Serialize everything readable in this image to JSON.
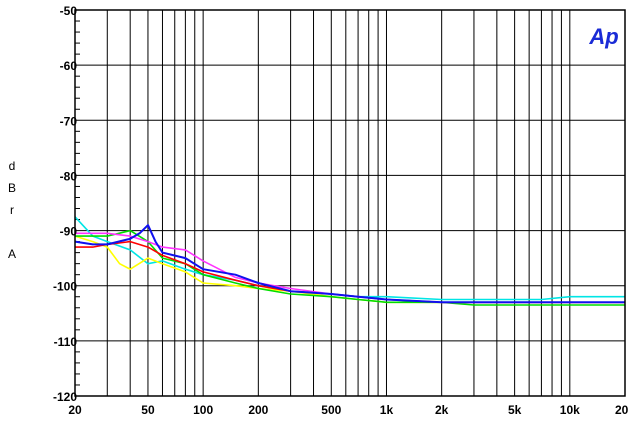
{
  "chart_data": {
    "type": "line",
    "title": "",
    "xlabel": "",
    "ylabel": [
      "d",
      "B",
      "r",
      "",
      "A"
    ],
    "xscale": "log",
    "xlim": [
      20,
      20000
    ],
    "ylim": [
      -120,
      -50
    ],
    "grid": true,
    "x_tick_labels": [
      {
        "value": 20,
        "label": "20"
      },
      {
        "value": 50,
        "label": "50"
      },
      {
        "value": 100,
        "label": "100"
      },
      {
        "value": 200,
        "label": "200"
      },
      {
        "value": 500,
        "label": "500"
      },
      {
        "value": 1000,
        "label": "1k"
      },
      {
        "value": 2000,
        "label": "2k"
      },
      {
        "value": 5000,
        "label": "5k"
      },
      {
        "value": 10000,
        "label": "10k"
      },
      {
        "value": 20000,
        "label": "20k"
      }
    ],
    "y_tick_labels": [
      {
        "value": -50,
        "label": "-50"
      },
      {
        "value": -60,
        "label": "-60"
      },
      {
        "value": -70,
        "label": "-70"
      },
      {
        "value": -80,
        "label": "-80"
      },
      {
        "value": -90,
        "label": "-90"
      },
      {
        "value": -100,
        "label": "-100"
      },
      {
        "value": -110,
        "label": "-110"
      },
      {
        "value": -120,
        "label": "-120"
      }
    ],
    "logo": "Ap",
    "logo_color": "#1a2bd6",
    "series": [
      {
        "color": "#00e5e5",
        "x": [
          20,
          25,
          30,
          40,
          50,
          60,
          80,
          100,
          150,
          200,
          300,
          500,
          700,
          1000,
          2000,
          3000,
          5000,
          7000,
          10000,
          15000,
          20000
        ],
        "y": [
          -87.5,
          -91,
          -92,
          -93.5,
          -96,
          -95.5,
          -97,
          -98,
          -99,
          -100,
          -101,
          -101.5,
          -102,
          -102,
          -102.5,
          -102.5,
          -102.5,
          -102.5,
          -102,
          -102,
          -102
        ]
      },
      {
        "color": "#ffff00",
        "x": [
          20,
          25,
          30,
          35,
          40,
          50,
          60,
          80,
          100,
          150,
          200,
          300,
          500,
          700,
          1000,
          2000,
          3000,
          5000,
          7000,
          10000,
          15000,
          20000
        ],
        "y": [
          -91,
          -92,
          -93,
          -96,
          -97,
          -95,
          -96,
          -97.5,
          -99.5,
          -100,
          -100.5,
          -101,
          -102,
          -102.5,
          -103,
          -103,
          -103,
          -103,
          -103,
          -103,
          -103,
          -103
        ]
      },
      {
        "color": "#00dd00",
        "x": [
          20,
          25,
          30,
          40,
          50,
          60,
          80,
          100,
          150,
          200,
          300,
          500,
          700,
          1000,
          2000,
          3000,
          5000,
          7000,
          10000,
          15000,
          20000
        ],
        "y": [
          -91,
          -91,
          -91,
          -90,
          -92,
          -95,
          -96,
          -98,
          -99.5,
          -100.5,
          -101.5,
          -102,
          -102.5,
          -103,
          -103,
          -103.5,
          -103.5,
          -103.5,
          -103.5,
          -103.5,
          -103.5
        ]
      },
      {
        "color": "#ff0000",
        "x": [
          20,
          25,
          30,
          40,
          50,
          60,
          80,
          100,
          150,
          200,
          300,
          500,
          700,
          1000,
          2000,
          3000,
          5000,
          7000,
          10000,
          15000,
          20000
        ],
        "y": [
          -93,
          -93,
          -92.5,
          -92,
          -93,
          -94.5,
          -96,
          -97.5,
          -99,
          -100,
          -101,
          -101.5,
          -102,
          -102.5,
          -103,
          -103,
          -103,
          -103,
          -103,
          -103,
          -103
        ]
      },
      {
        "color": "#ff33ff",
        "x": [
          20,
          25,
          30,
          40,
          50,
          60,
          80,
          100,
          150,
          200,
          300,
          500,
          700,
          1000,
          2000,
          3000,
          5000,
          7000,
          10000,
          15000,
          20000
        ],
        "y": [
          -90.5,
          -90.5,
          -90.5,
          -91,
          -92,
          -93,
          -93.5,
          -95.5,
          -98.5,
          -99.5,
          -100.5,
          -101.5,
          -102,
          -102.5,
          -103,
          -103,
          -103,
          -103,
          -103,
          -103,
          -103
        ]
      },
      {
        "color": "#1010ee",
        "x": [
          20,
          25,
          30,
          40,
          45,
          50,
          55,
          60,
          80,
          100,
          150,
          200,
          300,
          500,
          700,
          1000,
          2000,
          3000,
          5000,
          7000,
          10000,
          15000,
          20000
        ],
        "y": [
          -92,
          -92.5,
          -92.5,
          -91.5,
          -90.5,
          -89,
          -92,
          -94,
          -95,
          -97,
          -98,
          -99.5,
          -101,
          -101.5,
          -102,
          -102.5,
          -103,
          -103,
          -103,
          -103,
          -103,
          -103,
          -103
        ]
      }
    ]
  }
}
